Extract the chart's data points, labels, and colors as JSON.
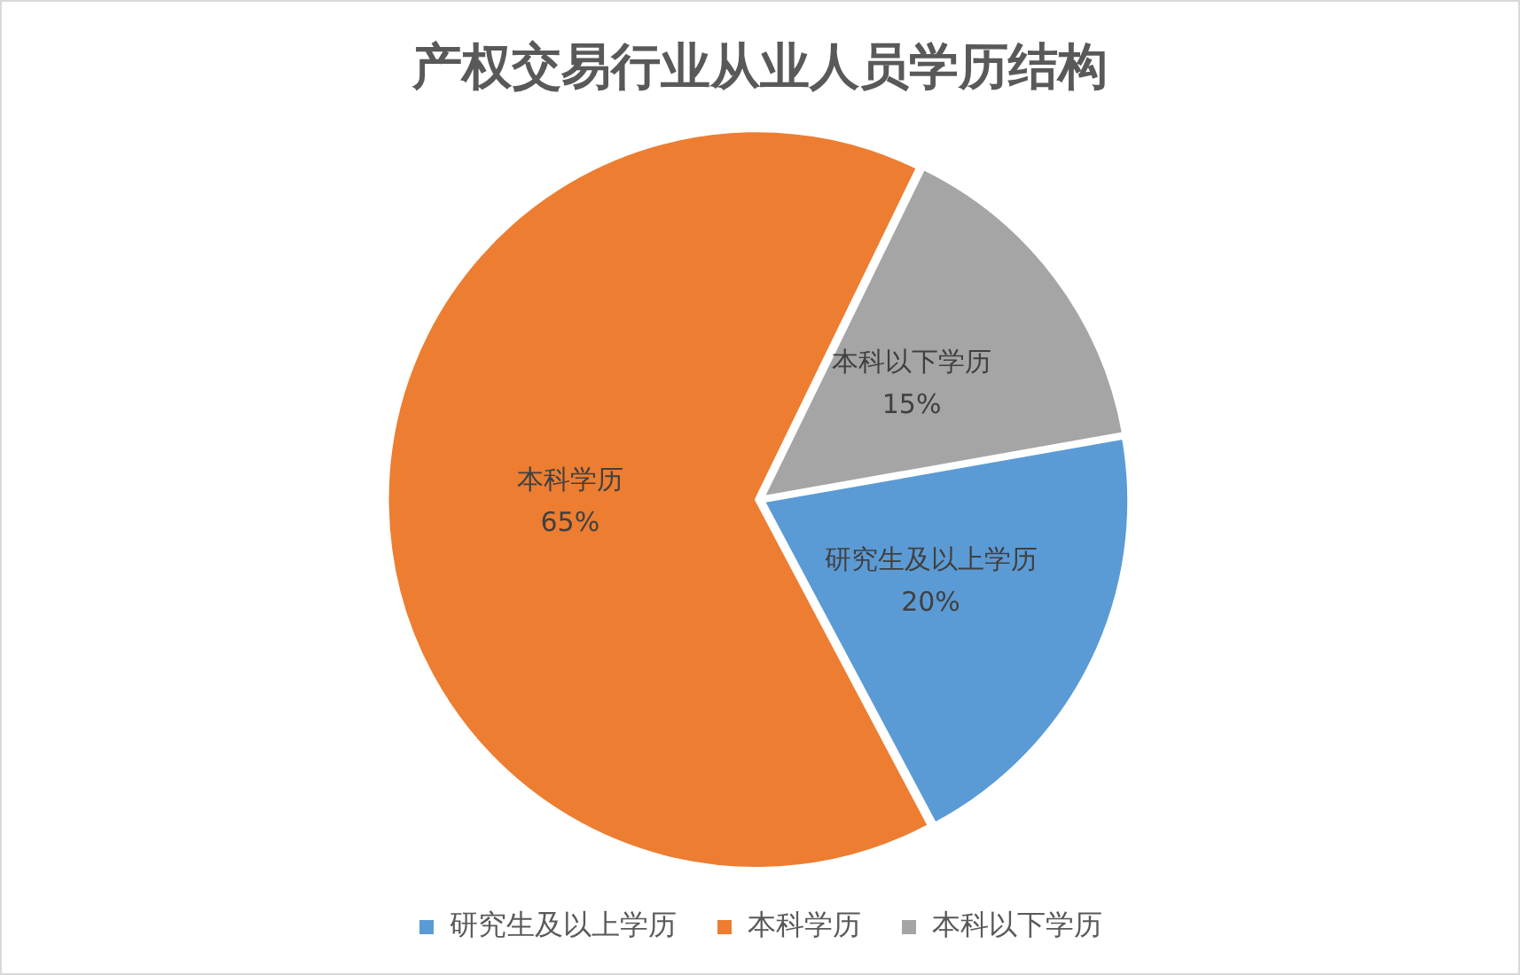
{
  "chart_data": {
    "type": "pie",
    "title": "产权交易行业从业人员学历结构",
    "categories": [
      "研究生及以上学历",
      "本科学历",
      "本科以下学历"
    ],
    "values": [
      20,
      65,
      15
    ],
    "colors": [
      "#5b9bd5",
      "#ed7d31",
      "#a5a5a5"
    ],
    "value_labels": [
      "20%",
      "65%",
      "15%"
    ],
    "legend": "bottom"
  }
}
